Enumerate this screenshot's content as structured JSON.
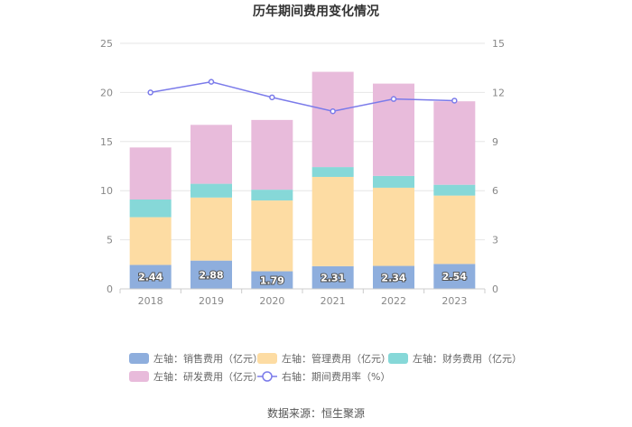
{
  "chart_data": {
    "type": "bar",
    "stacked": true,
    "title": "历年期间费用变化情况",
    "categories": [
      "2018",
      "2019",
      "2020",
      "2021",
      "2022",
      "2023"
    ],
    "left_axis": {
      "ylim": [
        0,
        25
      ],
      "ticks": [
        0,
        5,
        10,
        15,
        20,
        25
      ]
    },
    "right_axis": {
      "ylim": [
        0,
        15
      ],
      "ticks": [
        0,
        3,
        6,
        9,
        12,
        15
      ]
    },
    "series": [
      {
        "name": "左轴：销售费用（亿元）",
        "axis": "left",
        "color": "#8eaedd",
        "values": [
          2.44,
          2.88,
          1.79,
          2.31,
          2.34,
          2.54
        ],
        "labels": [
          "2.44",
          "2.88",
          "1.79",
          "2.31",
          "2.34",
          "2.54"
        ]
      },
      {
        "name": "左轴：管理费用（亿元）",
        "axis": "left",
        "color": "#fddca3",
        "values": [
          4.86,
          6.42,
          7.21,
          9.09,
          7.96,
          6.96
        ]
      },
      {
        "name": "左轴：财务费用（亿元）",
        "axis": "left",
        "color": "#86d8d8",
        "values": [
          1.8,
          1.4,
          1.1,
          1.0,
          1.2,
          1.1
        ]
      },
      {
        "name": "左轴：研发费用（亿元）",
        "axis": "left",
        "color": "#e8bbdb",
        "values": [
          5.3,
          6.0,
          7.1,
          9.7,
          9.4,
          8.5
        ]
      },
      {
        "name": "右轴：期间费用率（%）",
        "axis": "right",
        "type": "line",
        "color": "#7b7bea",
        "values": [
          12.0,
          12.65,
          11.7,
          10.85,
          11.6,
          11.5
        ]
      }
    ],
    "grid": true,
    "legend_position": "bottom"
  },
  "source": "数据来源：恒生聚源"
}
